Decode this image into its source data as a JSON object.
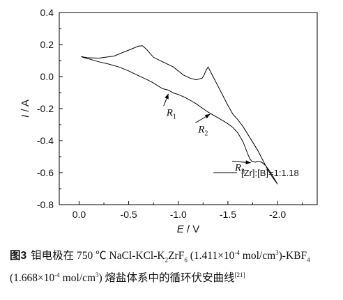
{
  "chart_data": {
    "type": "line",
    "xlabel_var": "E",
    "xlabel_unit": "V",
    "ylabel_var": "I",
    "ylabel_unit": "A",
    "xlim": [
      0.2,
      -2.4
    ],
    "ylim": [
      -0.8,
      0.4
    ],
    "x_ticks": [
      {
        "value": -2.0,
        "label": "-2.0"
      },
      {
        "value": -1.5,
        "label": "-1.5"
      },
      {
        "value": -1.0,
        "label": "-1.0"
      },
      {
        "value": -0.5,
        "label": "-0.5"
      },
      {
        "value": 0.0,
        "label": "0.0"
      }
    ],
    "y_ticks": [
      {
        "value": 0.4,
        "label": "0.4"
      },
      {
        "value": 0.2,
        "label": "0.2"
      },
      {
        "value": 0.0,
        "label": "0.0"
      },
      {
        "value": -0.2,
        "label": "-0.2"
      },
      {
        "value": -0.4,
        "label": "-0.4"
      },
      {
        "value": -0.6,
        "label": "-0.6"
      },
      {
        "value": -0.8,
        "label": "-0.8"
      }
    ],
    "series": [
      {
        "name": "[Zr]:[B]=1:1.18",
        "color": "#000000",
        "x": [
          -2.0,
          -1.97,
          -1.92,
          -1.88,
          -1.84,
          -1.8,
          -1.78,
          -1.74,
          -1.72,
          -1.7,
          -1.68,
          -1.65,
          -1.6,
          -1.55,
          -1.5,
          -1.45,
          -1.4,
          -1.35,
          -1.3,
          -1.26,
          -1.22,
          -1.18,
          -1.12,
          -1.06,
          -1.0,
          -0.95,
          -0.9,
          -0.87,
          -0.84,
          -0.8,
          -0.75,
          -0.68,
          -0.6,
          -0.5,
          -0.4,
          -0.3,
          -0.2,
          -0.1,
          -0.04,
          -0.02,
          -0.08,
          -0.2,
          -0.35,
          -0.5,
          -0.6,
          -0.64,
          -0.68,
          -0.75,
          -0.85,
          -0.95,
          -1.05,
          -1.12,
          -1.18,
          -1.24,
          -1.26,
          -1.28,
          -1.3,
          -1.35,
          -1.4,
          -1.45,
          -1.5,
          -1.55,
          -1.6,
          -1.65,
          -1.7,
          -1.75,
          -1.8,
          -1.85,
          -1.9,
          -1.95,
          -2.0
        ],
        "y": [
          -0.672,
          -0.64,
          -0.59,
          -0.556,
          -0.535,
          -0.53,
          -0.535,
          -0.53,
          -0.512,
          -0.485,
          -0.45,
          -0.405,
          -0.352,
          -0.318,
          -0.295,
          -0.275,
          -0.258,
          -0.24,
          -0.222,
          -0.205,
          -0.188,
          -0.17,
          -0.148,
          -0.128,
          -0.112,
          -0.102,
          -0.085,
          -0.08,
          -0.075,
          -0.06,
          -0.04,
          -0.018,
          0.005,
          0.035,
          0.06,
          0.078,
          0.092,
          0.11,
          0.12,
          0.125,
          0.118,
          0.115,
          0.128,
          0.165,
          0.19,
          0.192,
          0.17,
          0.12,
          0.09,
          0.06,
          0.01,
          -0.01,
          -0.02,
          -0.01,
          0.01,
          0.04,
          0.06,
          0.0,
          -0.06,
          -0.12,
          -0.18,
          -0.235,
          -0.27,
          -0.31,
          -0.36,
          -0.41,
          -0.46,
          -0.52,
          -0.58,
          -0.63,
          -0.672
        ]
      }
    ],
    "annotations": [
      {
        "letter": "R",
        "sub": "1",
        "x": -0.88,
        "y": -0.245,
        "arrow_to": [
          -0.9,
          -0.108
        ]
      },
      {
        "letter": "R",
        "sub": "2",
        "x": -1.2,
        "y": -0.35,
        "arrow_to": [
          -1.32,
          -0.235
        ]
      },
      {
        "letter": "R",
        "sub": "3",
        "x": -1.57,
        "y": -0.59,
        "arrow_to": [
          -1.73,
          -0.538
        ]
      }
    ],
    "legend_position": "bottom-right",
    "grid": false
  },
  "caption": {
    "label": "图3",
    "text": "钼电极在 750 ℃ NaCl-KCl-K",
    "sub1": "2",
    "text2": "ZrF",
    "sub2": "6",
    "text3": " (1.411×10",
    "sup1": "-4",
    "text4": " mol/cm",
    "sup2": "3",
    "text5": ")-KBF",
    "sub3": "4",
    "text6": " (1.668×10",
    "sup3": "-4",
    "text7": " mol/cm",
    "sup4": "3",
    "text8": ") 熔盐体系中的循环伏安曲线",
    "ref": "[21]"
  }
}
